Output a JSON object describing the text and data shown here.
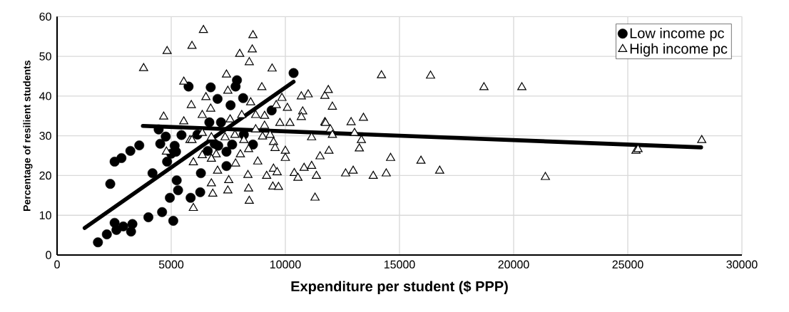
{
  "chart_data": {
    "type": "scatter",
    "xlabel": "Expenditure per student ($ PPP)",
    "ylabel": "Percentage of resilient students",
    "xlim": [
      0,
      30000
    ],
    "xticks": [
      0,
      5000,
      10000,
      15000,
      20000,
      25000,
      30000
    ],
    "ylim": [
      0,
      60
    ],
    "yticks": [
      0,
      10,
      20,
      30,
      40,
      50,
      60
    ],
    "grid": true,
    "legend": "top right",
    "series": [
      {
        "name": "Low income pc",
        "marker": "circle",
        "color": "#000000",
        "x": [
          1790,
          2180,
          2520,
          2600,
          2900,
          3240,
          3300,
          4000,
          4600,
          5090,
          2330,
          2520,
          2820,
          3210,
          3600,
          4180,
          4450,
          4760,
          4520,
          4820,
          5150,
          5210,
          5450,
          5240,
          5300,
          4940,
          5850,
          5760,
          6730,
          7030,
          7880,
          7820,
          8150,
          7600,
          6670,
          7180,
          6150,
          8180,
          8580,
          7670,
          7060,
          7420,
          6600,
          7420,
          6300,
          6270,
          9400,
          10360,
          5000,
          6900
        ],
        "values": [
          3.2,
          5.2,
          8.1,
          6.3,
          7.2,
          5.9,
          7.8,
          9.5,
          10.8,
          8.6,
          17.9,
          23.5,
          24.4,
          26.2,
          27.6,
          20.6,
          31.6,
          29.8,
          28,
          23.5,
          27.5,
          26,
          30.2,
          18.8,
          16.3,
          14.4,
          14.4,
          42.4,
          42.2,
          39.3,
          44,
          42.4,
          39.5,
          37.7,
          33.4,
          33.4,
          30.3,
          30.3,
          27.8,
          27.8,
          27.5,
          26,
          26.2,
          22.4,
          20.6,
          15.8,
          36.4,
          45.8,
          25.5,
          28
        ]
      },
      {
        "name": "High income pc",
        "marker": "triangle",
        "color": "#000000",
        "x": [
          4820,
          3790,
          5910,
          5550,
          5880,
          4670,
          5550,
          5820,
          4790,
          5970,
          5970,
          6410,
          8580,
          8000,
          8550,
          8420,
          9420,
          7420,
          8970,
          7480,
          6520,
          6730,
          8480,
          9850,
          10700,
          11000,
          11730,
          10090,
          9600,
          10760,
          10700,
          9090,
          8700,
          8090,
          7580,
          6360,
          10200,
          9760,
          11730,
          9090,
          8700,
          9330,
          7790,
          7360,
          6760,
          6360,
          5910,
          8180,
          9000,
          9480,
          11150,
          8390,
          8030,
          6970,
          6360,
          6760,
          9550,
          10000,
          10000,
          8790,
          7820,
          11520,
          7030,
          9480,
          9180,
          9640,
          10390,
          10550,
          10820,
          11150,
          11360,
          8360,
          7520,
          6760,
          9450,
          9700,
          7480,
          8390,
          6820,
          8420,
          11300,
          14210,
          16360,
          11880,
          12060,
          13420,
          12880,
          11760,
          11970,
          12060,
          13030,
          13330,
          11910,
          13240,
          14610,
          15940,
          16760,
          12640,
          12970,
          13850,
          14420,
          18700,
          20360,
          21390,
          25360,
          25450,
          28240
        ],
        "values": [
          51.3,
          47,
          52.6,
          43.6,
          37.7,
          34.8,
          33.6,
          28.9,
          26,
          23.3,
          11.8,
          56.6,
          55.3,
          50.6,
          51.7,
          48.5,
          46.9,
          45.4,
          42.2,
          41.3,
          39.7,
          36.8,
          38.4,
          39.5,
          39.9,
          40.4,
          40,
          37,
          37.7,
          36.1,
          34.7,
          35,
          35.2,
          35.2,
          34.1,
          35.2,
          33.2,
          33.2,
          33.4,
          32.5,
          31.6,
          30.2,
          30.2,
          29.6,
          29.6,
          30.7,
          28.9,
          28.9,
          29.8,
          28.4,
          29.6,
          26.6,
          25.3,
          25.3,
          25.1,
          24.2,
          26.9,
          26.2,
          24.4,
          23.5,
          23,
          24.8,
          21.2,
          21.7,
          19.9,
          20.8,
          20.6,
          19.4,
          21.9,
          22.4,
          19.9,
          20.1,
          18.8,
          18,
          17.2,
          17.1,
          16.2,
          16.7,
          15.4,
          13.6,
          14.4,
          45.2,
          45.1,
          41.5,
          37.3,
          34.5,
          33.4,
          33.2,
          31.6,
          30.2,
          30.7,
          28.9,
          26.2,
          26.8,
          24.4,
          23.7,
          21.2,
          20.5,
          21.2,
          19.9,
          20.5,
          42.2,
          42.2,
          19.6,
          26.2,
          26.6,
          28.9
        ]
      },
      {
        "type": "line",
        "color": "#000000",
        "line_style": "solid",
        "x": [
          1210,
          10360
        ],
        "values": [
          6.8,
          43.6
        ]
      },
      {
        "type": "line",
        "color": "#000000",
        "line_style": "solid",
        "x": [
          3760,
          28210
        ],
        "values": [
          32.5,
          27.1
        ]
      }
    ]
  }
}
